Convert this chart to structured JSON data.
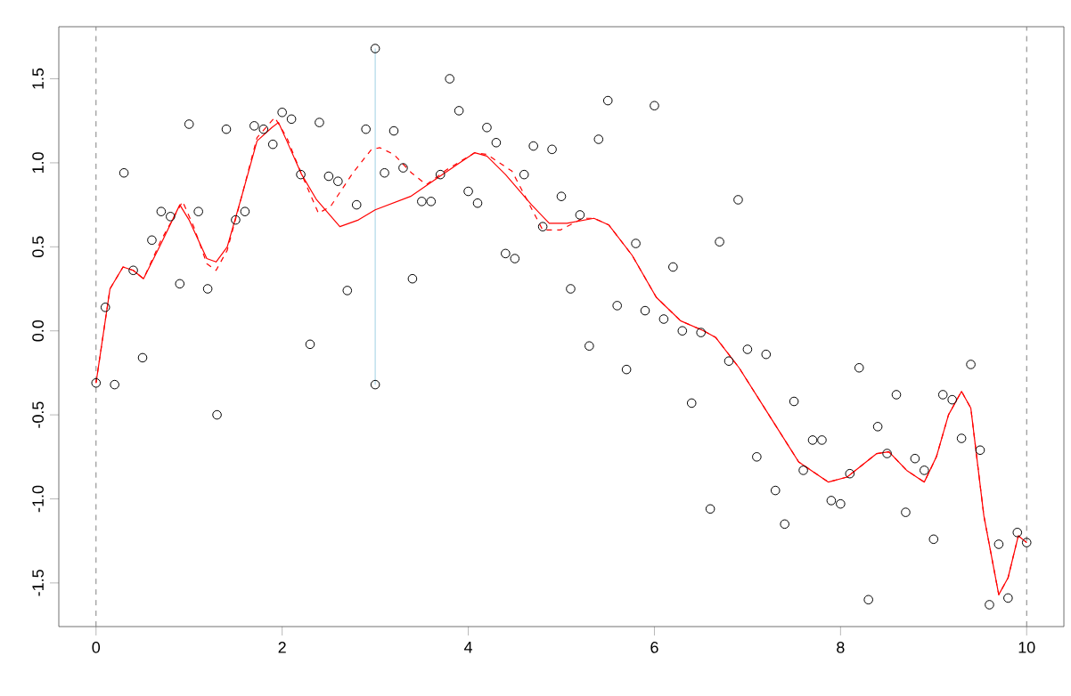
{
  "chart_data": {
    "type": "scatter",
    "xlim": [
      -0.4,
      10.4
    ],
    "ylim": [
      -1.76,
      1.81
    ],
    "xticks": [
      0,
      2,
      4,
      6,
      8,
      10
    ],
    "yticks": [
      {
        "value": -1.5,
        "label": "-1.5"
      },
      {
        "value": -1,
        "label": "-1.0"
      },
      {
        "value": -0.5,
        "label": "-0.5"
      },
      {
        "value": 0,
        "label": "0.0"
      },
      {
        "value": 0.5,
        "label": "0.5"
      },
      {
        "value": 1,
        "label": "1.0"
      },
      {
        "value": 1.5,
        "label": "1.5"
      }
    ],
    "ref_lines": [
      {
        "axis": "x",
        "value": 0,
        "color": "#808080",
        "line_style": "dashed"
      },
      {
        "axis": "x",
        "value": 10,
        "color": "#808080",
        "line_style": "dashed"
      }
    ],
    "series": [
      {
        "type": "line",
        "color": "#b0d8e8",
        "line_style": "solid",
        "marker": "none",
        "x": [
          3,
          3
        ],
        "values": [
          -0.32,
          1.68
        ]
      },
      {
        "type": "line",
        "color": "#ff0000",
        "line_style": "dashed",
        "marker": "none",
        "x": [
          0,
          0.15,
          0.29,
          0.4,
          0.51,
          0.7,
          0.93,
          1.05,
          1.19,
          1.29,
          1.41,
          1.57,
          1.73,
          1.92,
          2.05,
          2.21,
          2.39,
          2.52,
          2.76,
          2.96,
          3.05,
          3.2,
          3.39,
          3.55,
          3.77,
          4.07,
          4.2,
          4.47,
          4.8,
          4.99,
          5.23,
          5.35,
          5.51,
          5.76,
          6.02,
          6.28,
          6.53,
          6.66,
          6.91,
          7.23,
          7.55,
          7.87,
          8.07,
          8.39,
          8.52,
          8.71,
          8.9,
          9.03,
          9.16,
          9.3,
          9.4,
          9.54,
          9.7,
          9.8,
          9.91,
          10
        ],
        "values": [
          -0.31,
          0.25,
          0.38,
          0.36,
          0.31,
          0.54,
          0.77,
          0.62,
          0.4,
          0.36,
          0.48,
          0.81,
          1.15,
          1.27,
          1.15,
          0.93,
          0.7,
          0.74,
          0.94,
          1.08,
          1.09,
          1.05,
          0.94,
          0.87,
          0.96,
          1.06,
          1.05,
          0.95,
          0.6,
          0.6,
          0.67,
          0.67,
          0.63,
          0.45,
          0.2,
          0.06,
          0.0,
          -0.04,
          -0.22,
          -0.5,
          -0.78,
          -0.9,
          -0.87,
          -0.73,
          -0.72,
          -0.83,
          -0.9,
          -0.75,
          -0.5,
          -0.36,
          -0.46,
          -1.1,
          -1.57,
          -1.47,
          -1.22,
          -1.26
        ]
      },
      {
        "type": "line",
        "color": "#ff0000",
        "line_style": "solid",
        "marker": "none",
        "x": [
          0,
          0.15,
          0.29,
          0.4,
          0.51,
          0.7,
          0.9,
          1.0,
          1.19,
          1.29,
          1.41,
          1.57,
          1.73,
          1.89,
          1.96,
          2.05,
          2.21,
          2.37,
          2.62,
          2.82,
          3.0,
          3.38,
          3.72,
          4.07,
          4.2,
          4.4,
          4.68,
          4.87,
          5.06,
          5.35,
          5.51,
          5.76,
          6.02,
          6.28,
          6.53,
          6.66,
          6.91,
          7.23,
          7.55,
          7.87,
          8.07,
          8.39,
          8.52,
          8.71,
          8.9,
          9.03,
          9.16,
          9.3,
          9.4,
          9.54,
          9.7,
          9.8,
          9.91,
          10
        ],
        "values": [
          -0.31,
          0.25,
          0.38,
          0.36,
          0.31,
          0.52,
          0.75,
          0.66,
          0.43,
          0.41,
          0.5,
          0.81,
          1.13,
          1.21,
          1.24,
          1.13,
          0.93,
          0.78,
          0.62,
          0.66,
          0.72,
          0.8,
          0.93,
          1.06,
          1.04,
          0.93,
          0.75,
          0.64,
          0.64,
          0.67,
          0.63,
          0.45,
          0.2,
          0.06,
          0.0,
          -0.04,
          -0.22,
          -0.5,
          -0.78,
          -0.9,
          -0.87,
          -0.73,
          -0.72,
          -0.83,
          -0.9,
          -0.75,
          -0.5,
          -0.36,
          -0.46,
          -1.1,
          -1.57,
          -1.47,
          -1.22,
          -1.26
        ]
      },
      {
        "color": "#000000",
        "marker": "circle",
        "x": [
          0,
          0.1,
          0.2,
          0.3,
          0.4,
          0.5,
          0.6,
          0.7,
          0.8,
          0.9,
          1.0,
          1.1,
          1.2,
          1.3,
          1.4,
          1.5,
          1.6,
          1.7,
          1.8,
          1.9,
          2.0,
          2.1,
          2.2,
          2.3,
          2.4,
          2.5,
          2.6,
          2.7,
          2.8,
          2.9,
          3.0,
          3.0,
          3.1,
          3.2,
          3.3,
          3.4,
          3.5,
          3.6,
          3.7,
          3.8,
          3.9,
          4.0,
          4.1,
          4.2,
          4.3,
          4.4,
          4.5,
          4.6,
          4.7,
          4.8,
          4.9,
          5.0,
          5.1,
          5.2,
          5.3,
          5.4,
          5.5,
          5.6,
          5.7,
          5.8,
          5.9,
          6.0,
          6.1,
          6.2,
          6.3,
          6.4,
          6.5,
          6.6,
          6.7,
          6.8,
          6.9,
          7.0,
          7.1,
          7.2,
          7.3,
          7.4,
          7.5,
          7.6,
          7.7,
          7.8,
          7.9,
          8.0,
          8.1,
          8.2,
          8.3,
          8.4,
          8.5,
          8.6,
          8.7,
          8.8,
          8.9,
          9.0,
          9.1,
          9.2,
          9.3,
          9.4,
          9.5,
          9.6,
          9.7,
          9.8,
          9.9,
          10
        ],
        "values": [
          -0.31,
          0.14,
          -0.32,
          0.94,
          0.36,
          -0.16,
          0.54,
          0.71,
          0.68,
          0.28,
          1.23,
          0.71,
          0.25,
          -0.5,
          1.2,
          0.66,
          0.71,
          1.22,
          1.2,
          1.11,
          1.3,
          1.26,
          0.93,
          -0.08,
          1.24,
          0.92,
          0.89,
          0.24,
          0.75,
          1.2,
          1.68,
          -0.32,
          0.94,
          1.19,
          0.97,
          0.31,
          0.77,
          0.77,
          0.93,
          1.5,
          1.31,
          0.83,
          0.76,
          1.21,
          1.12,
          0.46,
          0.43,
          0.93,
          1.1,
          0.62,
          1.08,
          0.8,
          0.25,
          0.69,
          -0.09,
          1.14,
          1.37,
          0.15,
          -0.23,
          0.52,
          0.12,
          1.34,
          0.07,
          0.38,
          0.0,
          -0.43,
          -0.01,
          -1.06,
          0.53,
          -0.18,
          0.78,
          -0.11,
          -0.75,
          -0.14,
          -0.95,
          -1.15,
          -0.42,
          -0.83,
          -0.65,
          -0.65,
          -1.01,
          -1.03,
          -0.85,
          -0.22,
          -1.6,
          -0.57,
          -0.73,
          -0.38,
          -1.08,
          -0.76,
          -0.83,
          -1.24,
          -0.38,
          -0.41,
          -0.64,
          -0.2,
          -0.71,
          -1.63,
          -1.27,
          -1.59,
          -1.2,
          -1.26
        ]
      }
    ]
  }
}
